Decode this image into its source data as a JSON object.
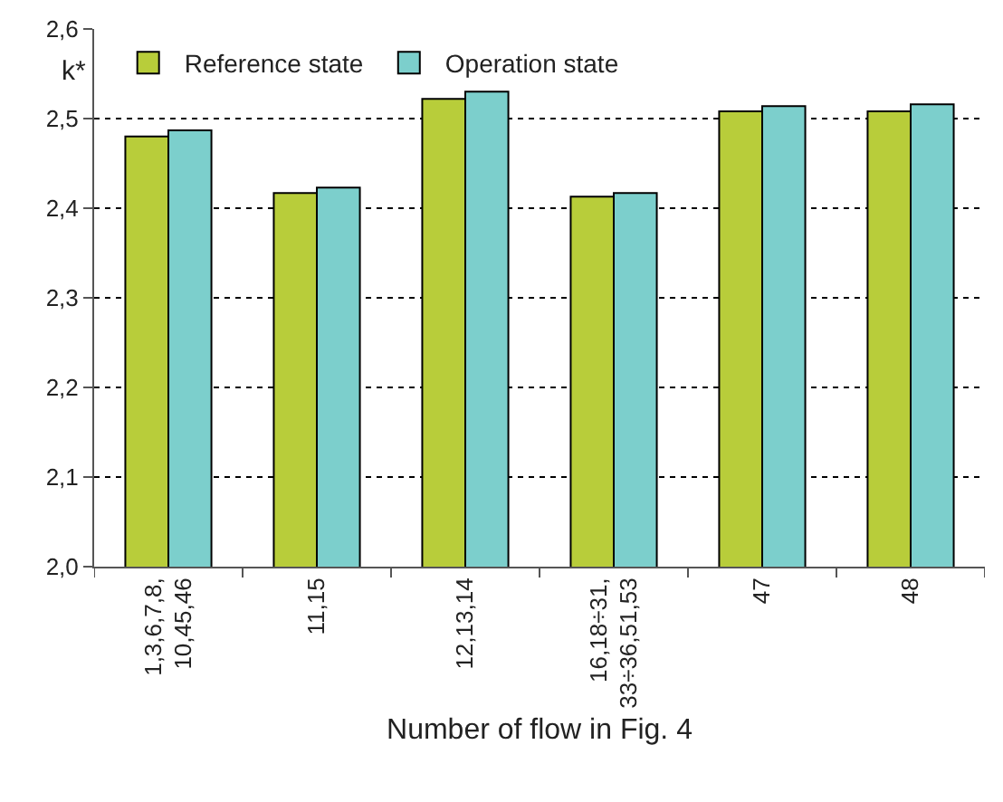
{
  "chart_data": {
    "type": "bar",
    "xlabel": "Number of flow in Fig. 4",
    "ylabel": "k*",
    "categories": [
      "1,3,6,7,8,\n10,45,46",
      "11,15",
      "12,13,14",
      "16,18÷31,\n33÷36,51,53",
      "47",
      "48"
    ],
    "series": [
      {
        "name": "Reference state",
        "color": "#b8cd3a",
        "values": [
          2.48,
          2.417,
          2.522,
          2.413,
          2.508,
          2.508
        ]
      },
      {
        "name": "Operation state",
        "color": "#7ccfcc",
        "values": [
          2.487,
          2.423,
          2.53,
          2.417,
          2.514,
          2.516
        ]
      }
    ],
    "ylim": [
      2.0,
      2.6
    ],
    "yticks": [
      {
        "value": 2.0,
        "label": "2,0"
      },
      {
        "value": 2.1,
        "label": "2,1"
      },
      {
        "value": 2.2,
        "label": "2,2"
      },
      {
        "value": 2.3,
        "label": "2,3"
      },
      {
        "value": 2.4,
        "label": "2,4"
      },
      {
        "value": 2.5,
        "label": "2,5"
      },
      {
        "value": 2.6,
        "label": "2,6"
      }
    ],
    "grid": "y",
    "legend": "top left"
  }
}
